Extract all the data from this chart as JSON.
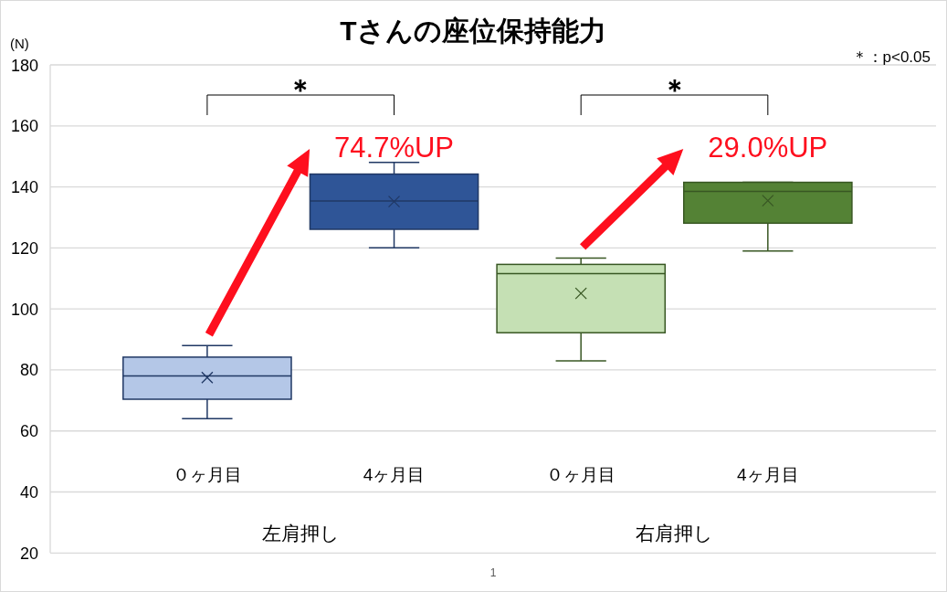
{
  "chart_data": {
    "type": "box",
    "title": "Tさんの座位保持能力",
    "ylabel": "(N)",
    "categories": [
      "０ヶ月目",
      "4ヶ月目",
      "０ヶ月目",
      "4ヶ月目"
    ],
    "series": [
      {
        "color": "#203864",
        "colors": [
          "#b4c7e7",
          "#2f5597",
          null,
          null
        ],
        "boxes": [
          {
            "low": 64,
            "q1": 70.4,
            "median": 78,
            "q3": 84.2,
            "high": 88,
            "mean": 77.5
          },
          {
            "low": 120,
            "q1": 126.1,
            "median": 135.4,
            "q3": 144.2,
            "high": 148,
            "mean": 135.2
          },
          null,
          null
        ]
      },
      {
        "color": "#385723",
        "colors": [
          null,
          null,
          "#c5e0b4",
          "#548235"
        ],
        "boxes": [
          null,
          null,
          {
            "low": 83,
            "q1": 92.2,
            "median": 111.6,
            "q3": 114.6,
            "high": 116.7,
            "mean": 105.1
          },
          {
            "low": 119,
            "q1": 128.1,
            "median": 138.5,
            "q3": 141.5,
            "high": 141.5,
            "mean": 135.5
          }
        ]
      }
    ],
    "ylim": [
      20,
      180
    ],
    "yticks": [
      20,
      40,
      60,
      80,
      100,
      120,
      140,
      160,
      180
    ],
    "grid": "y",
    "annotations": [
      "＊",
      "74.7%UP",
      "＊",
      "29.0%UP",
      "左肩押し",
      "右肩押し",
      "＊：p<0.05",
      "1"
    ]
  }
}
